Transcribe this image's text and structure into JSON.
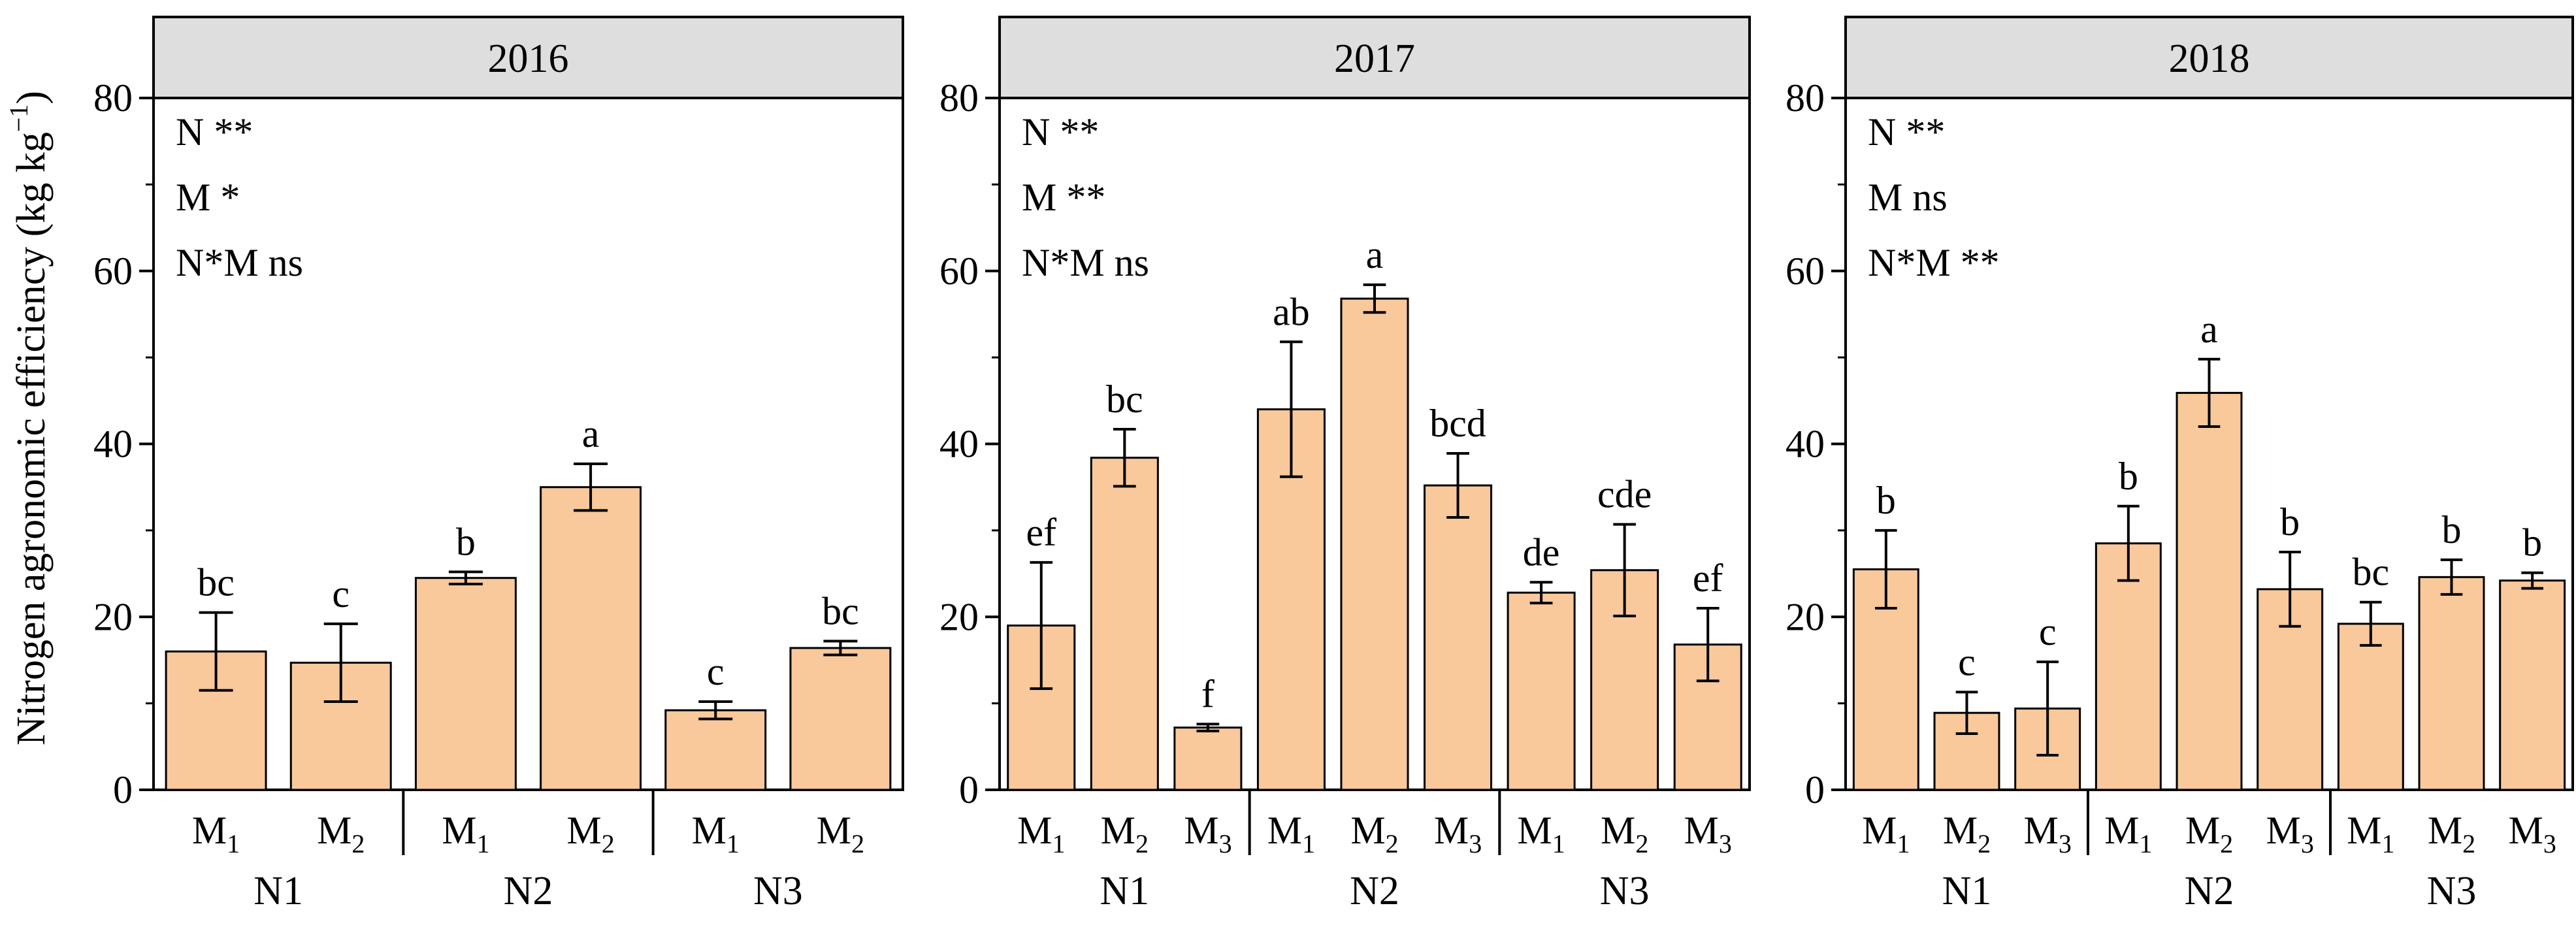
{
  "chart_data": {
    "type": "bar",
    "ylabel": "Nitrogen agronomic efficiency (kg kg",
    "ylabel_sup": "−1",
    "ylabel_close": ")",
    "ylim": [
      0,
      80
    ],
    "yticks": [
      "0",
      "20",
      "40",
      "60",
      "80"
    ],
    "bar_color": "#f9c89b",
    "header_color": "#dedede",
    "panels": [
      {
        "title": "2016",
        "stats": [
          "N **",
          "M *",
          "N*M ns"
        ],
        "groups": [
          {
            "name": "N1",
            "bars": [
              {
                "main": "M",
                "sub": "1",
                "value": 16.0,
                "err": 4.5,
                "letter": "bc"
              },
              {
                "main": "M",
                "sub": "2",
                "value": 14.7,
                "err": 4.5,
                "letter": "c"
              }
            ]
          },
          {
            "name": "N2",
            "bars": [
              {
                "main": "M",
                "sub": "1",
                "value": 24.5,
                "err": 0.7,
                "letter": "b"
              },
              {
                "main": "M",
                "sub": "2",
                "value": 35.0,
                "err": 2.7,
                "letter": "a"
              }
            ]
          },
          {
            "name": "N3",
            "bars": [
              {
                "main": "M",
                "sub": "1",
                "value": 9.2,
                "err": 1.0,
                "letter": "c"
              },
              {
                "main": "M",
                "sub": "2",
                "value": 16.4,
                "err": 0.8,
                "letter": "bc"
              }
            ]
          }
        ]
      },
      {
        "title": "2017",
        "stats": [
          "N **",
          "M **",
          "N*M ns"
        ],
        "groups": [
          {
            "name": "N1",
            "bars": [
              {
                "main": "M",
                "sub": "1",
                "value": 19.0,
                "err": 7.3,
                "letter": "ef"
              },
              {
                "main": "M",
                "sub": "2",
                "value": 38.4,
                "err": 3.3,
                "letter": "bc"
              },
              {
                "main": "M",
                "sub": "3",
                "value": 7.2,
                "err": 0.4,
                "letter": "f"
              }
            ]
          },
          {
            "name": "N2",
            "bars": [
              {
                "main": "M",
                "sub": "1",
                "value": 44.0,
                "err": 7.8,
                "letter": "ab"
              },
              {
                "main": "M",
                "sub": "2",
                "value": 56.8,
                "err": 1.6,
                "letter": "a"
              },
              {
                "main": "M",
                "sub": "3",
                "value": 35.2,
                "err": 3.7,
                "letter": "bcd"
              }
            ]
          },
          {
            "name": "N3",
            "bars": [
              {
                "main": "M",
                "sub": "1",
                "value": 22.8,
                "err": 1.2,
                "letter": "de"
              },
              {
                "main": "M",
                "sub": "2",
                "value": 25.4,
                "err": 5.3,
                "letter": "cde"
              },
              {
                "main": "M",
                "sub": "3",
                "value": 16.8,
                "err": 4.2,
                "letter": "ef"
              }
            ]
          }
        ]
      },
      {
        "title": "2018",
        "stats": [
          "N **",
          "M ns",
          "N*M **"
        ],
        "groups": [
          {
            "name": "N1",
            "bars": [
              {
                "main": "M",
                "sub": "1",
                "value": 25.5,
                "err": 4.5,
                "letter": "b"
              },
              {
                "main": "M",
                "sub": "2",
                "value": 8.9,
                "err": 2.4,
                "letter": "c"
              },
              {
                "main": "M",
                "sub": "3",
                "value": 9.4,
                "err": 5.4,
                "letter": "c"
              }
            ]
          },
          {
            "name": "N2",
            "bars": [
              {
                "main": "M",
                "sub": "1",
                "value": 28.5,
                "err": 4.3,
                "letter": "b"
              },
              {
                "main": "M",
                "sub": "2",
                "value": 45.9,
                "err": 3.9,
                "letter": "a"
              },
              {
                "main": "M",
                "sub": "3",
                "value": 23.2,
                "err": 4.3,
                "letter": "b"
              }
            ]
          },
          {
            "name": "N3",
            "bars": [
              {
                "main": "M",
                "sub": "1",
                "value": 19.2,
                "err": 2.5,
                "letter": "bc"
              },
              {
                "main": "M",
                "sub": "2",
                "value": 24.6,
                "err": 2.0,
                "letter": "b"
              },
              {
                "main": "M",
                "sub": "3",
                "value": 24.2,
                "err": 0.9,
                "letter": "b"
              }
            ]
          }
        ]
      }
    ]
  }
}
